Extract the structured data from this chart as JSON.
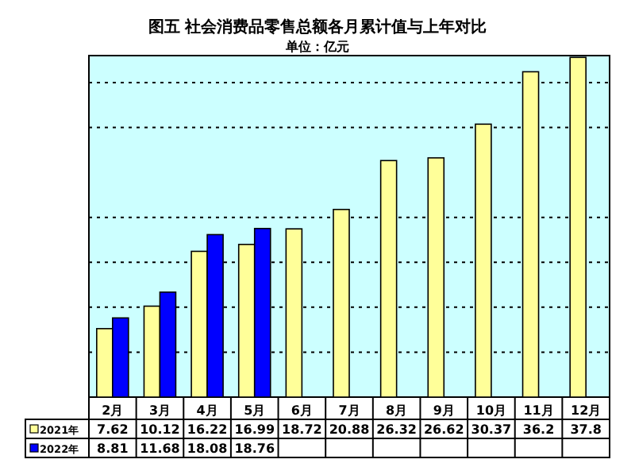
{
  "chart_data": {
    "type": "bar",
    "title": "图五  社会消费品零售总额各月累计值与上年对比",
    "subtitle": "单位：亿元",
    "categories": [
      "2月",
      "3月",
      "4月",
      "5月",
      "6月",
      "7月",
      "8月",
      "9月",
      "10月",
      "11月",
      "12月"
    ],
    "series": [
      {
        "name": "2021年",
        "color": "#ffff99",
        "values": [
          7.62,
          10.12,
          16.22,
          16.99,
          18.72,
          20.88,
          26.32,
          26.62,
          30.37,
          36.2,
          37.8
        ]
      },
      {
        "name": "2022年",
        "color": "#0000ff",
        "values": [
          8.81,
          11.68,
          18.08,
          18.76,
          null,
          null,
          null,
          null,
          null,
          null,
          null
        ]
      }
    ],
    "ylim": [
      0,
      38
    ],
    "yticks": [
      {
        "value": 5,
        "label": null
      },
      {
        "value": 10,
        "label": null
      },
      {
        "value": 15,
        "label": null
      },
      {
        "value": 20,
        "label": null
      },
      {
        "value": 30,
        "label": null
      },
      {
        "value": 35,
        "label": null
      }
    ],
    "grid": "y",
    "legend": "bottom",
    "data_labels": true
  }
}
